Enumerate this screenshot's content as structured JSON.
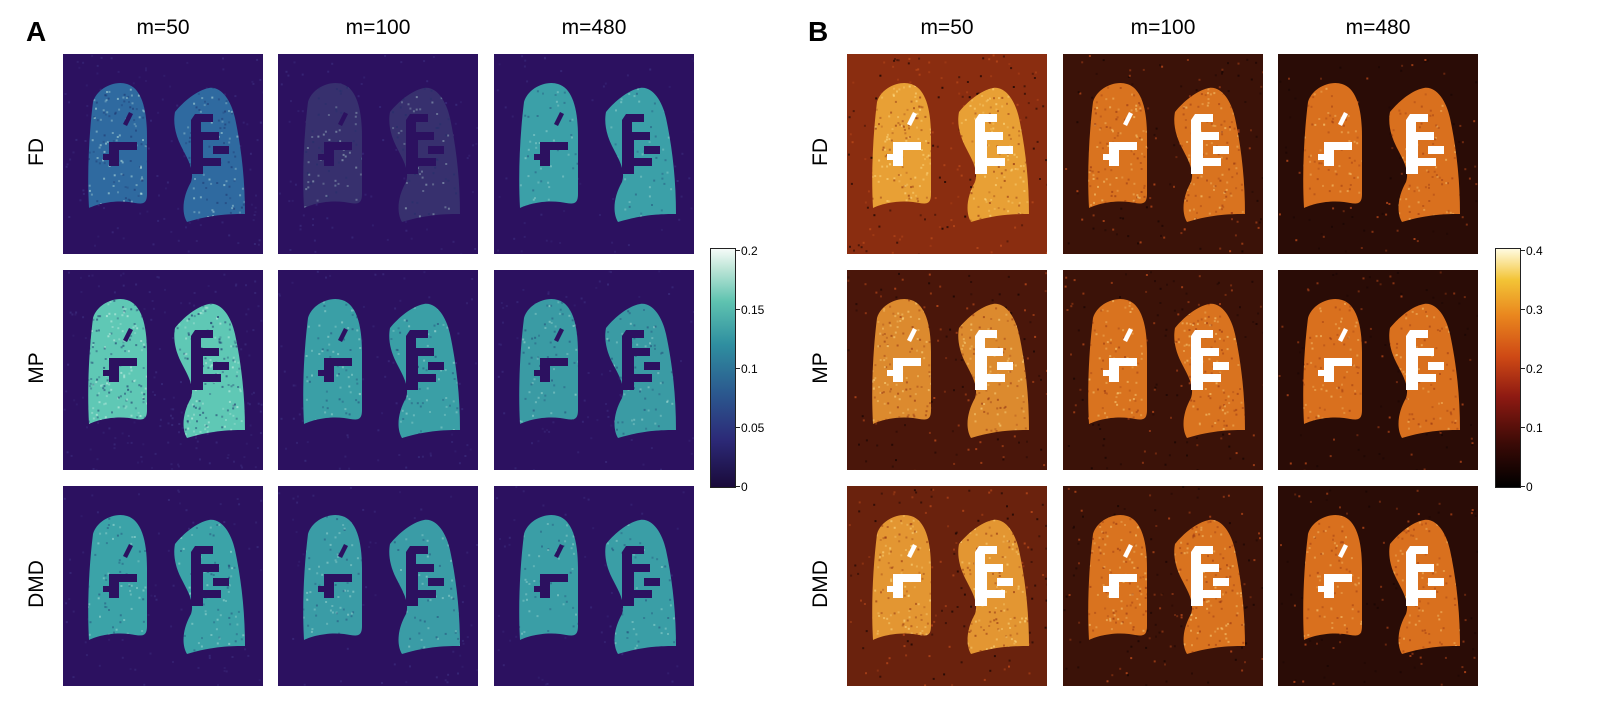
{
  "figure": {
    "panels": [
      {
        "letter": "A",
        "columns": [
          "m=50",
          "m=100",
          "m=480"
        ],
        "rows": [
          "FD",
          "MP",
          "DMD"
        ],
        "colormap": "deep",
        "colorbar": {
          "ticks": [
            "0.2",
            "0.15",
            "0.1",
            "0.05",
            "0"
          ],
          "range": [
            0,
            0.2
          ]
        },
        "background_color": "#2c1160",
        "lung_colors": [
          [
            "#2f6aa0",
            "#37306e",
            "#3ba0a8"
          ],
          [
            "#5fc8b5",
            "#3a9fa6",
            "#3a9ba4"
          ],
          [
            "#3ba3a8",
            "#3a9ca6",
            "#3a9ea6"
          ]
        ],
        "vessel_colors": [
          [
            "#2c1160",
            "#2c1160",
            "#2c1160"
          ],
          [
            "#2c1160",
            "#2c1160",
            "#2c1160"
          ],
          [
            "#2c1160",
            "#2c1160",
            "#2c1160"
          ]
        ],
        "noise": [
          [
            0.55,
            0.35,
            0.25
          ],
          [
            0.75,
            0.35,
            0.35
          ],
          [
            0.35,
            0.3,
            0.25
          ]
        ]
      },
      {
        "letter": "B",
        "columns": [
          "m=50",
          "m=100",
          "m=480"
        ],
        "rows": [
          "FD",
          "MP",
          "DMD"
        ],
        "colormap": "heat",
        "colorbar": {
          "ticks": [
            "0.4",
            "0.3",
            "0.2",
            "0.1",
            "0"
          ],
          "range": [
            0,
            0.4
          ]
        },
        "background_colors": [
          [
            "#8a2d10",
            "#3b1208",
            "#2a0c06"
          ],
          [
            "#4a160a",
            "#3b1208",
            "#2a0c06"
          ],
          [
            "#6a220d",
            "#3b1208",
            "#2a0c06"
          ]
        ],
        "lung_colors": [
          [
            "#e8a035",
            "#d9731f",
            "#d9701e"
          ],
          [
            "#dc8a2e",
            "#d9731f",
            "#d9701e"
          ],
          [
            "#e39632",
            "#d9731f",
            "#d9701e"
          ]
        ],
        "vessel_colors": [
          [
            "#ffffff",
            "#ffffff",
            "#ffffff"
          ],
          [
            "#ffffff",
            "#ffffff",
            "#ffffff"
          ],
          [
            "#ffffff",
            "#ffffff",
            "#ffffff"
          ]
        ],
        "noise": [
          [
            0.7,
            0.55,
            0.4
          ],
          [
            0.6,
            0.55,
            0.4
          ],
          [
            0.65,
            0.55,
            0.4
          ]
        ]
      }
    ]
  }
}
